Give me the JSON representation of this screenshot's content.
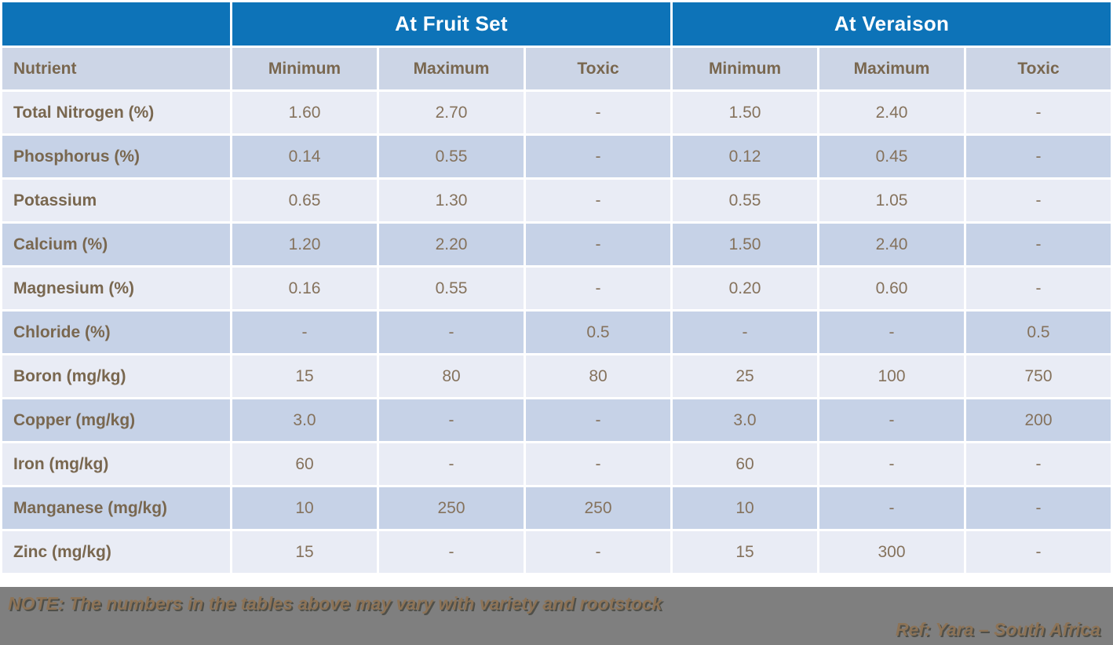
{
  "colors": {
    "group_header_blue": "#0d73b8",
    "column_header_bg": "#ccd5e6",
    "row_light": "#e9ecf5",
    "row_dark": "#c6d2e7",
    "label_brown": "#79674f",
    "value_brown": "#85725c",
    "footer_gray": "#7f7f7f",
    "footer_text_brown": "#8d7356"
  },
  "table": {
    "group_headers": [
      {
        "label": "At Fruit Set"
      },
      {
        "label": "At Veraison"
      }
    ],
    "columns": [
      "Nutrient",
      "Minimum",
      "Maximum",
      "Toxic",
      "Minimum",
      "Maximum",
      "Toxic"
    ],
    "rows": [
      {
        "nutrient": "Total Nitrogen (%)",
        "values": [
          "1.60",
          "2.70",
          "-",
          "1.50",
          "2.40",
          "-"
        ]
      },
      {
        "nutrient": "Phosphorus (%)",
        "values": [
          "0.14",
          "0.55",
          "-",
          "0.12",
          "0.45",
          "-"
        ]
      },
      {
        "nutrient": "Potassium",
        "values": [
          "0.65",
          "1.30",
          "-",
          "0.55",
          "1.05",
          "-"
        ]
      },
      {
        "nutrient": "Calcium (%)",
        "values": [
          "1.20",
          "2.20",
          "-",
          "1.50",
          "2.40",
          "-"
        ]
      },
      {
        "nutrient": "Magnesium (%)",
        "values": [
          "0.16",
          "0.55",
          "-",
          "0.20",
          "0.60",
          "-"
        ]
      },
      {
        "nutrient": "Chloride (%)",
        "values": [
          "-",
          "-",
          "0.5",
          "-",
          "-",
          "0.5"
        ]
      },
      {
        "nutrient": "Boron (mg/kg)",
        "values": [
          "15",
          "80",
          "80",
          "25",
          "100",
          "750"
        ]
      },
      {
        "nutrient": "Copper (mg/kg)",
        "values": [
          "3.0",
          "-",
          "-",
          "3.0",
          "-",
          "200"
        ]
      },
      {
        "nutrient": "Iron (mg/kg)",
        "values": [
          "60",
          "-",
          "-",
          "60",
          "-",
          "-"
        ]
      },
      {
        "nutrient": "Manganese (mg/kg)",
        "values": [
          "10",
          "250",
          "250",
          "10",
          "-",
          "-"
        ]
      },
      {
        "nutrient": "Zinc (mg/kg)",
        "values": [
          "15",
          "-",
          "-",
          "15",
          "300",
          "-"
        ]
      }
    ]
  },
  "footer": {
    "note": "NOTE: The numbers in the tables above may vary with variety and rootstock",
    "ref": "Ref: Yara – South Africa"
  }
}
